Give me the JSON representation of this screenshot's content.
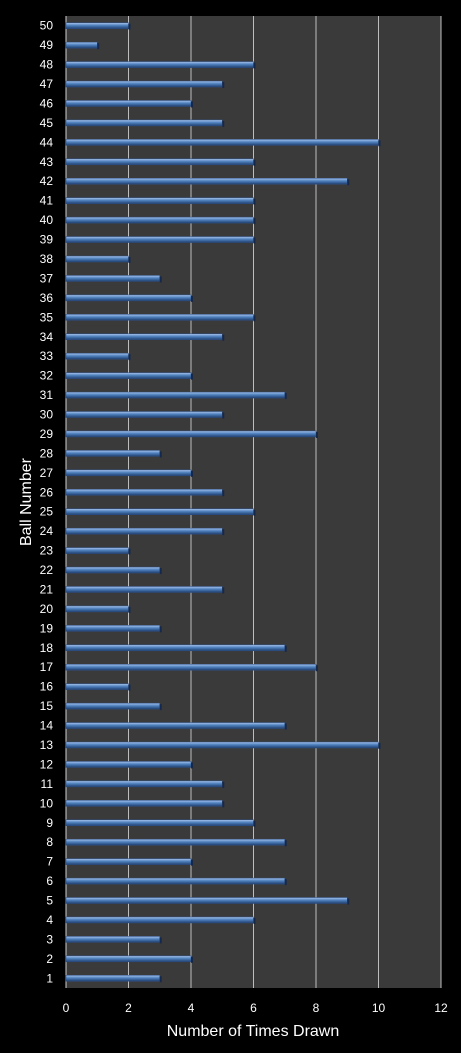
{
  "chart_data": {
    "type": "bar",
    "orientation": "horizontal",
    "xlabel": "Number of Times Drawn",
    "ylabel": "Ball Number",
    "xlim": [
      0,
      12
    ],
    "x_ticks": [
      0,
      2,
      4,
      6,
      8,
      10,
      12
    ],
    "grid": true,
    "categories": [
      "1",
      "2",
      "3",
      "4",
      "5",
      "6",
      "7",
      "8",
      "9",
      "10",
      "11",
      "12",
      "13",
      "14",
      "15",
      "16",
      "17",
      "18",
      "19",
      "20",
      "21",
      "22",
      "23",
      "24",
      "25",
      "26",
      "27",
      "28",
      "29",
      "30",
      "31",
      "32",
      "33",
      "34",
      "35",
      "36",
      "37",
      "38",
      "39",
      "40",
      "41",
      "42",
      "43",
      "44",
      "45",
      "46",
      "47",
      "48",
      "49",
      "50"
    ],
    "values": [
      3,
      4,
      3,
      6,
      9,
      7,
      4,
      7,
      6,
      5,
      5,
      4,
      10,
      7,
      3,
      2,
      8,
      7,
      3,
      2,
      5,
      3,
      2,
      5,
      6,
      5,
      4,
      3,
      8,
      5,
      7,
      4,
      2,
      5,
      6,
      4,
      3,
      2,
      6,
      6,
      6,
      9,
      6,
      10,
      5,
      4,
      5,
      6,
      1,
      2
    ],
    "colors": {
      "background": "#000000",
      "plot_area": "#3a3a3a",
      "bar": "#4f81bd",
      "bar_light": "#a9c5ee",
      "bar_dark": "#1f3f70",
      "grid": "#bdbdbd",
      "text": "#ffffff"
    }
  }
}
